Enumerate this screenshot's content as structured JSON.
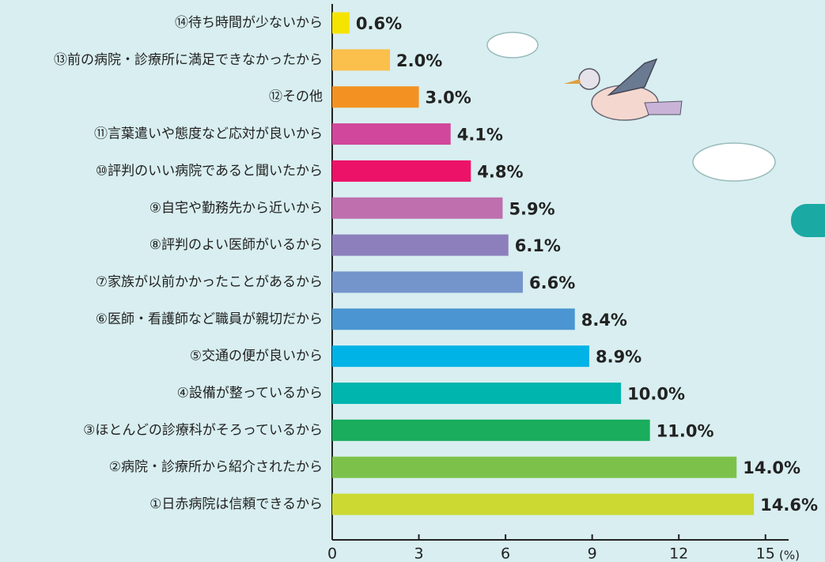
{
  "chart_data": {
    "type": "hbar",
    "categories": [
      "⑭待ち時間が少ないから",
      "⑬前の病院・診療所に満足できなかったから",
      "⑫その他",
      "⑪言葉遣いや態度など応対が良いから",
      "⑩評判のいい病院であると聞いたから",
      "⑨自宅や勤務先から近いから",
      "⑧評判のよい医師がいるから",
      "⑦家族が以前かかったことがあるから",
      "⑥医師・看護師など職員が親切だから",
      "⑤交通の便が良いから",
      "④設備が整っているから",
      "③ほとんどの診療科がそろっているから",
      "②病院・診療所から紹介されたから",
      "①日赤病院は信頼できるから"
    ],
    "values": [
      0.6,
      2.0,
      3.0,
      4.1,
      4.8,
      5.9,
      6.1,
      6.6,
      8.4,
      8.9,
      10.0,
      11.0,
      14.0,
      14.6
    ],
    "value_labels": [
      "0.6%",
      "2.0%",
      "3.0%",
      "4.1%",
      "4.8%",
      "5.9%",
      "6.1%",
      "6.6%",
      "8.4%",
      "8.9%",
      "10.0%",
      "11.0%",
      "14.0%",
      "14.6%"
    ],
    "colors": [
      "#f5e400",
      "#fbbf4c",
      "#f39222",
      "#d1479b",
      "#ec1268",
      "#bf6fae",
      "#8d7fbc",
      "#7494cc",
      "#4a95d2",
      "#00b3e6",
      "#00b5ad",
      "#19ad5d",
      "#7cc24a",
      "#cbd932"
    ],
    "xlim": [
      0,
      15.5
    ],
    "xticks": [
      0,
      3,
      6,
      9,
      12,
      15
    ],
    "xlabel": "(%)"
  }
}
